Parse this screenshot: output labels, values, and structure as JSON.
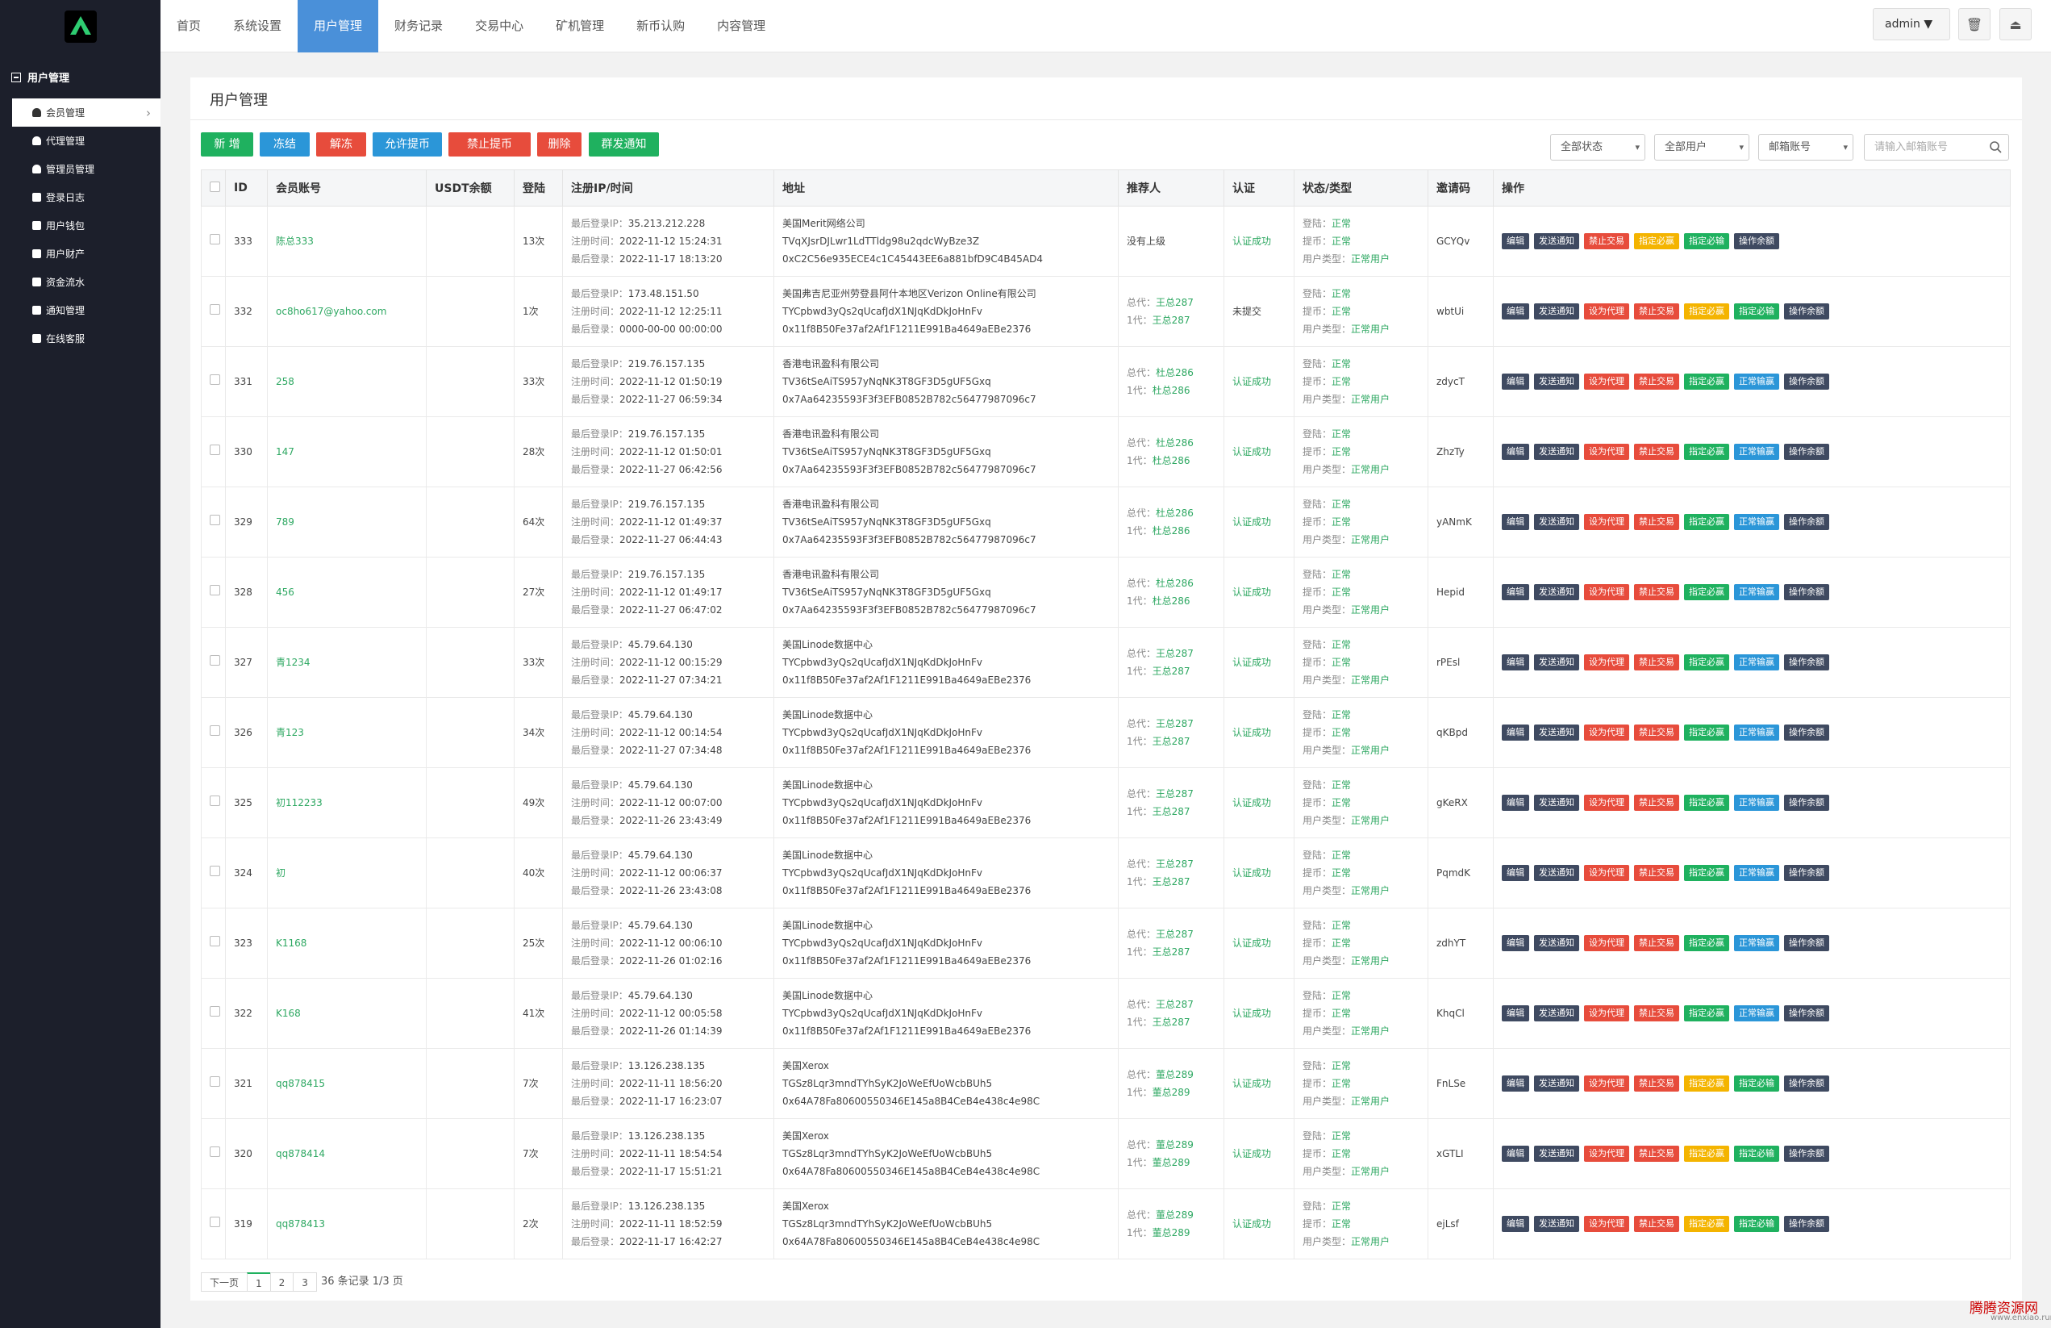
{
  "sidebar": {
    "group": "用户管理",
    "items": [
      {
        "label": "会员管理",
        "icon": "person-icon",
        "active": true
      },
      {
        "label": "代理管理",
        "icon": "person-icon"
      },
      {
        "label": "管理员管理",
        "icon": "person-icon"
      },
      {
        "label": "登录日志",
        "icon": "list-icon"
      },
      {
        "label": "用户钱包",
        "icon": "list-icon"
      },
      {
        "label": "用户财产",
        "icon": "list-icon"
      },
      {
        "label": "资金流水",
        "icon": "list-icon"
      },
      {
        "label": "通知管理",
        "icon": "list-icon"
      },
      {
        "label": "在线客服",
        "icon": "list-icon"
      }
    ]
  },
  "nav": [
    {
      "label": "首页"
    },
    {
      "label": "系统设置"
    },
    {
      "label": "用户管理",
      "active": true
    },
    {
      "label": "财务记录"
    },
    {
      "label": "交易中心"
    },
    {
      "label": "矿机管理"
    },
    {
      "label": "新币认购"
    },
    {
      "label": "内容管理"
    }
  ],
  "header": {
    "admin": "admin",
    "trash_icon": "trash-icon",
    "exit_icon": "logout-icon"
  },
  "panel": {
    "title": "用户管理"
  },
  "toolbar": [
    {
      "label": "新 增",
      "color": "#1fb15f"
    },
    {
      "label": "冻结",
      "color": "#2b96d8"
    },
    {
      "label": "解冻",
      "color": "#e74c3c"
    },
    {
      "label": "允许提币",
      "color": "#2b96d8"
    },
    {
      "label": "禁止提币",
      "color": "#e74c3c"
    },
    {
      "label": "删除",
      "color": "#e74c3c"
    },
    {
      "label": "群发通知",
      "color": "#1fb15f"
    }
  ],
  "filters": {
    "status": "全部状态",
    "users": "全部用户",
    "account": "邮箱账号",
    "search_placeholder": "请输入邮箱账号"
  },
  "columns": [
    "",
    "ID",
    "会员账号",
    "USDT余额",
    "登陆",
    "注册IP/时间",
    "地址",
    "推荐人",
    "认证",
    "状态/类型",
    "邀请码",
    "操作"
  ],
  "labels": {
    "last_ip": "最后登录IP：",
    "reg": "注册时间：",
    "last": "最后登录：",
    "login": "登陆：",
    "withdraw": "提币：",
    "usertype": "用户类型：",
    "normal": "正常",
    "normal_user": "正常用户",
    "total": "总代：",
    "gen1": "1代："
  },
  "op_colors": {
    "编辑": "#3f4a61",
    "发送通知": "#3f4a61",
    "设为代理": "#e74c3c",
    "禁止交易": "#e74c3c",
    "指定必赢": "#1fb15f",
    "指定必输": "#1fb15f",
    "指定必赢y": "#f4b400",
    "正常输赢": "#2b96d8",
    "操作余额": "#3f4a61"
  },
  "rows": [
    {
      "id": "333",
      "account": "陈总333",
      "balance": "",
      "logins": "13次",
      "ip": "35.213.212.228",
      "reg": "2022-11-12 15:24:31",
      "last": "2022-11-17 18:13:20",
      "org": "美国Merit网络公司",
      "addr1": "TVqXJsrDJLwr1LdTTldg98u2qdcWyBze3Z",
      "addr2": "0xC2C56e935ECE4c1C45443EE6a881bfD9C4B45AD4",
      "ref_total": "",
      "ref_gen1": "",
      "ref_none": "没有上级",
      "auth": "认证成功",
      "code": "GCYQv",
      "ops": [
        "编辑",
        "发送通知",
        "禁止交易",
        "指定必赢y",
        "指定必输",
        "操作余额"
      ]
    },
    {
      "id": "332",
      "account": "oc8ho617@yahoo.com",
      "balance": "",
      "logins": "1次",
      "ip": "173.48.151.50",
      "reg": "2022-11-12 12:25:11",
      "last": "0000-00-00 00:00:00",
      "org": "美国弗吉尼亚州劳登县阿什本地区Verizon Online有限公司",
      "addr1": "TYCpbwd3yQs2qUcafJdX1NJqKdDkJoHnFv",
      "addr2": "0x11f8B50Fe37af2Af1F1211E991Ba4649aEBe2376",
      "ref_total": "王总287",
      "ref_gen1": "王总287",
      "auth": "未提交",
      "code": "wbtUi",
      "ops": [
        "编辑",
        "发送通知",
        "设为代理",
        "禁止交易",
        "指定必赢y",
        "指定必输",
        "操作余额"
      ]
    },
    {
      "id": "331",
      "account": "258",
      "balance": "",
      "logins": "33次",
      "ip": "219.76.157.135",
      "reg": "2022-11-12 01:50:19",
      "last": "2022-11-27 06:59:34",
      "org": "香港电讯盈科有限公司",
      "addr1": "TV36tSeAiTS957yNqNK3T8GF3D5gUF5Gxq",
      "addr2": "0x7Aa64235593F3f3EFB0852B782c56477987096c7",
      "ref_total": "杜总286",
      "ref_gen1": "杜总286",
      "auth": "认证成功",
      "code": "zdycT",
      "ops": [
        "编辑",
        "发送通知",
        "设为代理",
        "禁止交易",
        "指定必赢",
        "正常输赢",
        "操作余额"
      ]
    },
    {
      "id": "330",
      "account": "147",
      "balance": "",
      "logins": "28次",
      "ip": "219.76.157.135",
      "reg": "2022-11-12 01:50:01",
      "last": "2022-11-27 06:42:56",
      "org": "香港电讯盈科有限公司",
      "addr1": "TV36tSeAiTS957yNqNK3T8GF3D5gUF5Gxq",
      "addr2": "0x7Aa64235593F3f3EFB0852B782c56477987096c7",
      "ref_total": "杜总286",
      "ref_gen1": "杜总286",
      "auth": "认证成功",
      "code": "ZhzTy",
      "ops": [
        "编辑",
        "发送通知",
        "设为代理",
        "禁止交易",
        "指定必赢",
        "正常输赢",
        "操作余额"
      ]
    },
    {
      "id": "329",
      "account": "789",
      "balance": "",
      "logins": "64次",
      "ip": "219.76.157.135",
      "reg": "2022-11-12 01:49:37",
      "last": "2022-11-27 06:44:43",
      "org": "香港电讯盈科有限公司",
      "addr1": "TV36tSeAiTS957yNqNK3T8GF3D5gUF5Gxq",
      "addr2": "0x7Aa64235593F3f3EFB0852B782c56477987096c7",
      "ref_total": "杜总286",
      "ref_gen1": "杜总286",
      "auth": "认证成功",
      "code": "yANmK",
      "ops": [
        "编辑",
        "发送通知",
        "设为代理",
        "禁止交易",
        "指定必赢",
        "正常输赢",
        "操作余额"
      ]
    },
    {
      "id": "328",
      "account": "456",
      "balance": "",
      "logins": "27次",
      "ip": "219.76.157.135",
      "reg": "2022-11-12 01:49:17",
      "last": "2022-11-27 06:47:02",
      "org": "香港电讯盈科有限公司",
      "addr1": "TV36tSeAiTS957yNqNK3T8GF3D5gUF5Gxq",
      "addr2": "0x7Aa64235593F3f3EFB0852B782c56477987096c7",
      "ref_total": "杜总286",
      "ref_gen1": "杜总286",
      "auth": "认证成功",
      "code": "Hepid",
      "ops": [
        "编辑",
        "发送通知",
        "设为代理",
        "禁止交易",
        "指定必赢",
        "正常输赢",
        "操作余额"
      ]
    },
    {
      "id": "327",
      "account": "青1234",
      "balance": "",
      "logins": "33次",
      "ip": "45.79.64.130",
      "reg": "2022-11-12 00:15:29",
      "last": "2022-11-27 07:34:21",
      "org": "美国Linode数据中心",
      "addr1": "TYCpbwd3yQs2qUcafJdX1NJqKdDkJoHnFv",
      "addr2": "0x11f8B50Fe37af2Af1F1211E991Ba4649aEBe2376",
      "ref_total": "王总287",
      "ref_gen1": "王总287",
      "auth": "认证成功",
      "code": "rPEsl",
      "ops": [
        "编辑",
        "发送通知",
        "设为代理",
        "禁止交易",
        "指定必赢",
        "正常输赢",
        "操作余额"
      ]
    },
    {
      "id": "326",
      "account": "青123",
      "balance": "",
      "logins": "34次",
      "ip": "45.79.64.130",
      "reg": "2022-11-12 00:14:54",
      "last": "2022-11-27 07:34:48",
      "org": "美国Linode数据中心",
      "addr1": "TYCpbwd3yQs2qUcafJdX1NJqKdDkJoHnFv",
      "addr2": "0x11f8B50Fe37af2Af1F1211E991Ba4649aEBe2376",
      "ref_total": "王总287",
      "ref_gen1": "王总287",
      "auth": "认证成功",
      "code": "qKBpd",
      "ops": [
        "编辑",
        "发送通知",
        "设为代理",
        "禁止交易",
        "指定必赢",
        "正常输赢",
        "操作余额"
      ]
    },
    {
      "id": "325",
      "account": "初112233",
      "balance": "",
      "logins": "49次",
      "ip": "45.79.64.130",
      "reg": "2022-11-12 00:07:00",
      "last": "2022-11-26 23:43:49",
      "org": "美国Linode数据中心",
      "addr1": "TYCpbwd3yQs2qUcafJdX1NJqKdDkJoHnFv",
      "addr2": "0x11f8B50Fe37af2Af1F1211E991Ba4649aEBe2376",
      "ref_total": "王总287",
      "ref_gen1": "王总287",
      "auth": "认证成功",
      "code": "gKeRX",
      "ops": [
        "编辑",
        "发送通知",
        "设为代理",
        "禁止交易",
        "指定必赢",
        "正常输赢",
        "操作余额"
      ]
    },
    {
      "id": "324",
      "account": "初",
      "balance": "",
      "logins": "40次",
      "ip": "45.79.64.130",
      "reg": "2022-11-12 00:06:37",
      "last": "2022-11-26 23:43:08",
      "org": "美国Linode数据中心",
      "addr1": "TYCpbwd3yQs2qUcafJdX1NJqKdDkJoHnFv",
      "addr2": "0x11f8B50Fe37af2Af1F1211E991Ba4649aEBe2376",
      "ref_total": "王总287",
      "ref_gen1": "王总287",
      "auth": "认证成功",
      "code": "PqmdK",
      "ops": [
        "编辑",
        "发送通知",
        "设为代理",
        "禁止交易",
        "指定必赢",
        "正常输赢",
        "操作余额"
      ]
    },
    {
      "id": "323",
      "account": "K1168",
      "balance": "",
      "logins": "25次",
      "ip": "45.79.64.130",
      "reg": "2022-11-12 00:06:10",
      "last": "2022-11-26 01:02:16",
      "org": "美国Linode数据中心",
      "addr1": "TYCpbwd3yQs2qUcafJdX1NJqKdDkJoHnFv",
      "addr2": "0x11f8B50Fe37af2Af1F1211E991Ba4649aEBe2376",
      "ref_total": "王总287",
      "ref_gen1": "王总287",
      "auth": "认证成功",
      "code": "zdhYT",
      "ops": [
        "编辑",
        "发送通知",
        "设为代理",
        "禁止交易",
        "指定必赢",
        "正常输赢",
        "操作余额"
      ]
    },
    {
      "id": "322",
      "account": "K168",
      "balance": "",
      "logins": "41次",
      "ip": "45.79.64.130",
      "reg": "2022-11-12 00:05:58",
      "last": "2022-11-26 01:14:39",
      "org": "美国Linode数据中心",
      "addr1": "TYCpbwd3yQs2qUcafJdX1NJqKdDkJoHnFv",
      "addr2": "0x11f8B50Fe37af2Af1F1211E991Ba4649aEBe2376",
      "ref_total": "王总287",
      "ref_gen1": "王总287",
      "auth": "认证成功",
      "code": "KhqCl",
      "ops": [
        "编辑",
        "发送通知",
        "设为代理",
        "禁止交易",
        "指定必赢",
        "正常输赢",
        "操作余额"
      ]
    },
    {
      "id": "321",
      "account": "qq878415",
      "balance": "",
      "logins": "7次",
      "ip": "13.126.238.135",
      "reg": "2022-11-11 18:56:20",
      "last": "2022-11-17 16:23:07",
      "org": "美国Xerox",
      "addr1": "TGSz8Lqr3mndTYhSyK2JoWeEfUoWcbBUh5",
      "addr2": "0x64A78Fa80600550346E145a8B4CeB4e438c4e98C",
      "ref_total": "董总289",
      "ref_gen1": "董总289",
      "auth": "认证成功",
      "code": "FnLSe",
      "ops": [
        "编辑",
        "发送通知",
        "设为代理",
        "禁止交易",
        "指定必赢y",
        "指定必输",
        "操作余额"
      ]
    },
    {
      "id": "320",
      "account": "qq878414",
      "balance": "",
      "logins": "7次",
      "ip": "13.126.238.135",
      "reg": "2022-11-11 18:54:54",
      "last": "2022-11-17 15:51:21",
      "org": "美国Xerox",
      "addr1": "TGSz8Lqr3mndTYhSyK2JoWeEfUoWcbBUh5",
      "addr2": "0x64A78Fa80600550346E145a8B4CeB4e438c4e98C",
      "ref_total": "董总289",
      "ref_gen1": "董总289",
      "auth": "认证成功",
      "code": "xGTLI",
      "ops": [
        "编辑",
        "发送通知",
        "设为代理",
        "禁止交易",
        "指定必赢y",
        "指定必输",
        "操作余额"
      ]
    },
    {
      "id": "319",
      "account": "qq878413",
      "balance": "",
      "logins": "2次",
      "ip": "13.126.238.135",
      "reg": "2022-11-11 18:52:59",
      "last": "2022-11-17 16:42:27",
      "org": "美国Xerox",
      "addr1": "TGSz8Lqr3mndTYhSyK2JoWeEfUoWcbBUh5",
      "addr2": "0x64A78Fa80600550346E145a8B4CeB4e438c4e98C",
      "ref_total": "董总289",
      "ref_gen1": "董总289",
      "auth": "认证成功",
      "code": "ejLsf",
      "ops": [
        "编辑",
        "发送通知",
        "设为代理",
        "禁止交易",
        "指定必赢y",
        "指定必输",
        "操作余额"
      ]
    }
  ],
  "pager": {
    "next": "下一页",
    "pages": [
      "1",
      "2",
      "3"
    ],
    "info": "36 条记录 1/3 页"
  },
  "watermark": {
    "line1": "腾腾资源网",
    "line2": "www.enxiao.run"
  }
}
